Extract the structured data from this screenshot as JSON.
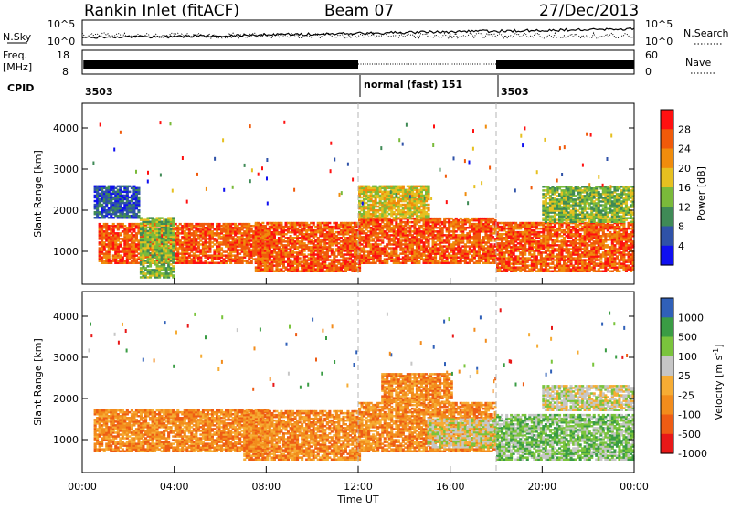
{
  "header": {
    "station": "Rankin Inlet (fitACF)",
    "beam": "Beam 07",
    "date": "27/Dec/2013"
  },
  "noise_panel": {
    "left_label": "N.Sky",
    "left_ticks": [
      "10^5",
      "10^0"
    ],
    "right_ticks": [
      "10^5",
      "10^0"
    ],
    "right_label": "N.Search",
    "legend_style": "dotted"
  },
  "freq_panel": {
    "left_label_1": "Freq.",
    "left_label_2": "[MHz]",
    "left_ticks": [
      "18",
      "8"
    ],
    "right_ticks": [
      "60",
      "0"
    ],
    "right_label": "Nave",
    "legend_style": "dotted"
  },
  "cpid_panel": {
    "label": "CPID",
    "segments": [
      {
        "text": "3503",
        "start_hour": 0
      },
      {
        "text": "normal (fast) 151",
        "start_hour": 12
      },
      {
        "text": "3503",
        "start_hour": 18
      }
    ]
  },
  "colors": {
    "power": [
      "#1010f0",
      "#2f52a8",
      "#3f8a56",
      "#7aba3a",
      "#e6c020",
      "#f08c0c",
      "#f05a0a",
      "#ff1010"
    ],
    "velocity": [
      "#e81818",
      "#ee5c14",
      "#f28c1c",
      "#f6ac34",
      "#c6c6c6",
      "#7ac43c",
      "#3a9c44",
      "#3060b8"
    ],
    "gate_line": "#b4b4b4"
  },
  "chart_data": [
    {
      "type": "heatmap",
      "title": "",
      "ylabel": "Slant Range [km]",
      "xlabel": "",
      "xlim": [
        0,
        24
      ],
      "ylim": [
        200,
        4600
      ],
      "y_ticks": [
        "1000",
        "2000",
        "3000",
        "4000"
      ],
      "colorbar_label": "Power [dB]",
      "colorbar_ticks": [
        "28",
        "24",
        "20",
        "16",
        "12",
        "8",
        "4"
      ],
      "colorbar_range": [
        0,
        32
      ],
      "vertical_dividers_hours": [
        12,
        18
      ],
      "regions": [
        {
          "hours": [
            0.7,
            8.0
          ],
          "range_km": [
            700,
            1650
          ],
          "value_db": 26
        },
        {
          "hours": [
            2.5,
            4.0
          ],
          "range_km": [
            350,
            1800
          ],
          "value_db": 12
        },
        {
          "hours": [
            7.5,
            12.0
          ],
          "range_km": [
            500,
            1700
          ],
          "value_db": 24
        },
        {
          "hours": [
            12.0,
            18.0
          ],
          "range_km": [
            700,
            1800
          ],
          "value_db": 26
        },
        {
          "hours": [
            12.0,
            15.0
          ],
          "range_km": [
            1800,
            2600
          ],
          "value_db": 18
        },
        {
          "hours": [
            18.0,
            24.0
          ],
          "range_km": [
            500,
            1700
          ],
          "value_db": 26
        },
        {
          "hours": [
            20.0,
            24.0
          ],
          "range_km": [
            1700,
            2600
          ],
          "value_db": 14
        },
        {
          "hours": [
            0.5,
            2.5
          ],
          "range_km": [
            1800,
            2600
          ],
          "value_db": 6
        }
      ]
    },
    {
      "type": "heatmap",
      "title": "",
      "ylabel": "Slant Range [km]",
      "xlabel": "Time UT",
      "xlim": [
        0,
        24
      ],
      "ylim": [
        200,
        4600
      ],
      "x_ticks": [
        "00:00",
        "04:00",
        "08:00",
        "12:00",
        "16:00",
        "20:00",
        "00:00"
      ],
      "y_ticks": [
        "1000",
        "2000",
        "3000",
        "4000"
      ],
      "colorbar_label": "Velocity [m s^-1]",
      "colorbar_label_base": "Velocity [m s",
      "colorbar_label_sup": "-1",
      "colorbar_label_end": "]",
      "colorbar_ticks": [
        "1000",
        "500",
        "100",
        "25",
        "-25",
        "-100",
        "-500",
        "-1000"
      ],
      "vertical_dividers_hours": [
        12,
        18
      ],
      "regions": [
        {
          "hours": [
            0.5,
            8.0
          ],
          "range_km": [
            700,
            1700
          ],
          "value_ms": -100
        },
        {
          "hours": [
            7.0,
            12.0
          ],
          "range_km": [
            500,
            1700
          ],
          "value_ms": -100
        },
        {
          "hours": [
            12.0,
            18.0
          ],
          "range_km": [
            700,
            1900
          ],
          "value_ms": -100
        },
        {
          "hours": [
            15.0,
            18.0
          ],
          "range_km": [
            800,
            1500
          ],
          "value_ms": 0
        },
        {
          "hours": [
            18.0,
            24.0
          ],
          "range_km": [
            500,
            1600
          ],
          "value_ms": 100
        },
        {
          "hours": [
            20.0,
            24.0
          ],
          "range_km": [
            1700,
            2300
          ],
          "value_ms": 0
        },
        {
          "hours": [
            13.0,
            16.0
          ],
          "range_km": [
            1900,
            2600
          ],
          "value_ms": -100
        }
      ]
    }
  ]
}
